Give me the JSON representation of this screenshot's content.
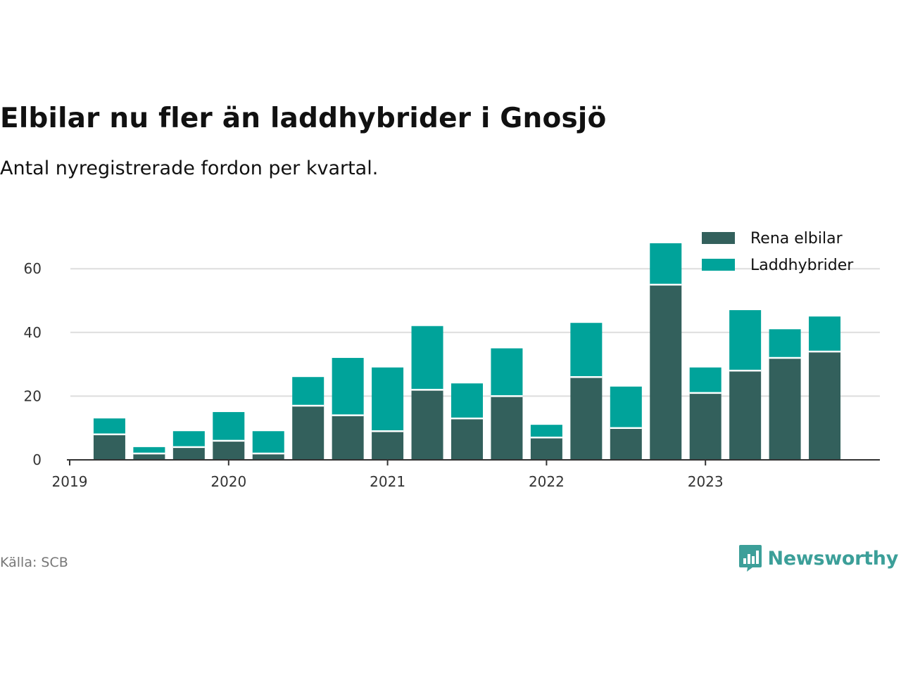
{
  "title": "Elbilar nu fler än laddhybrider i Gnosjö",
  "subtitle": "Antal nyregistrerade fordon per kvartal.",
  "source": "Källa: SCB",
  "brand": "Newsworthy",
  "colors": {
    "electric": "#33605c",
    "hybrid": "#00a39a",
    "grid": "#dddddd",
    "axis": "#333333",
    "brand": "#3c9f99"
  },
  "chart_data": {
    "type": "bar",
    "stacked": true,
    "title": "Elbilar nu fler än laddhybrider i Gnosjö",
    "subtitle": "Antal nyregistrerade fordon per kvartal.",
    "xlabel": "",
    "ylabel": "",
    "ylim": [
      0,
      70
    ],
    "yticks": [
      0,
      20,
      40,
      60
    ],
    "xticks": [
      "2019",
      "2020",
      "2021",
      "2022",
      "2023"
    ],
    "categories": [
      "2019 Q2",
      "2019 Q3",
      "2019 Q4",
      "2020 Q1",
      "2020 Q2",
      "2020 Q3",
      "2020 Q4",
      "2021 Q1",
      "2021 Q2",
      "2021 Q3",
      "2021 Q4",
      "2022 Q1",
      "2022 Q2",
      "2022 Q3",
      "2022 Q4",
      "2023 Q1",
      "2023 Q2",
      "2023 Q3",
      "2023 Q4"
    ],
    "series": [
      {
        "name": "Rena elbilar",
        "color": "#33605c",
        "values": [
          8,
          2,
          4,
          6,
          2,
          17,
          14,
          9,
          22,
          13,
          20,
          7,
          26,
          10,
          55,
          21,
          28,
          32,
          34
        ]
      },
      {
        "name": "Laddhybrider",
        "color": "#00a39a",
        "values": [
          5,
          2,
          5,
          9,
          7,
          9,
          18,
          20,
          20,
          11,
          15,
          4,
          17,
          13,
          13,
          8,
          19,
          9,
          11
        ]
      }
    ],
    "legend": "top-right",
    "grid": true
  }
}
